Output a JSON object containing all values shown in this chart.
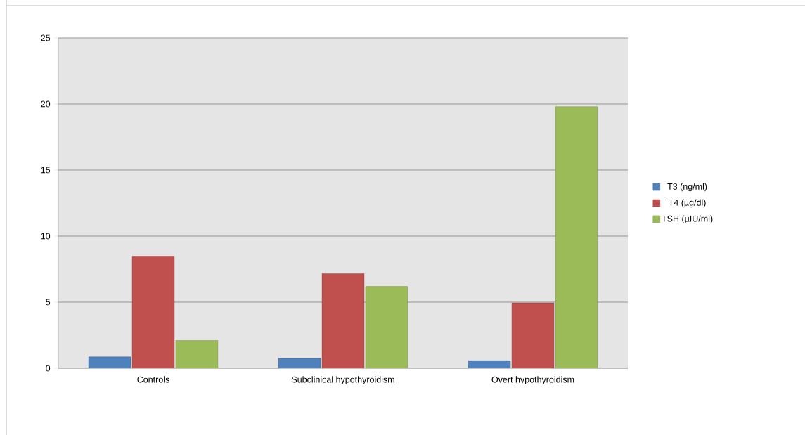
{
  "chart_data": {
    "type": "bar",
    "categories": [
      "Controls",
      "Subclinical hypothyroidism",
      "Overt hypothyroidism"
    ],
    "series": [
      {
        "name": "T3 (ng/ml)",
        "color": "#4f81bd",
        "values": [
          0.86,
          0.75,
          0.57
        ]
      },
      {
        "name": "T4 (µg/dl)",
        "color": "#c0504d",
        "values": [
          8.48,
          7.16,
          4.94
        ]
      },
      {
        "name": "TSH (µIU/ml)",
        "color": "#9bbb59",
        "values": [
          2.1,
          6.19,
          19.8
        ]
      }
    ],
    "ylim": [
      0,
      25
    ],
    "yticks": [
      0,
      5,
      10,
      15,
      20,
      25
    ],
    "grid": "y",
    "legend": "right"
  }
}
